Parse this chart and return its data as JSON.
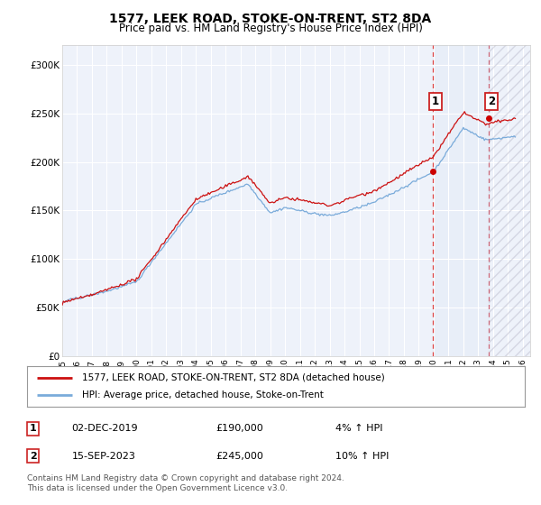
{
  "title": "1577, LEEK ROAD, STOKE-ON-TRENT, ST2 8DA",
  "subtitle": "Price paid vs. HM Land Registry's House Price Index (HPI)",
  "xlim_start": 1995.0,
  "xlim_end": 2026.5,
  "ylim": [
    0,
    320000
  ],
  "yticks": [
    0,
    50000,
    100000,
    150000,
    200000,
    250000,
    300000
  ],
  "ytick_labels": [
    "£0",
    "£50K",
    "£100K",
    "£150K",
    "£200K",
    "£250K",
    "£300K"
  ],
  "xticks": [
    1995,
    1996,
    1997,
    1998,
    1999,
    2000,
    2001,
    2002,
    2003,
    2004,
    2005,
    2006,
    2007,
    2008,
    2009,
    2010,
    2011,
    2012,
    2013,
    2014,
    2015,
    2016,
    2017,
    2018,
    2019,
    2020,
    2021,
    2022,
    2023,
    2024,
    2025,
    2026
  ],
  "background_color": "#ffffff",
  "plot_bg_color": "#eef2fa",
  "grid_color": "#ffffff",
  "sale1_x": 2019.92,
  "sale1_y": 190000,
  "sale2_x": 2023.71,
  "sale2_y": 245000,
  "vline1_color": "#dd4444",
  "vline2_color": "#cc6677",
  "span_color": "#dde8f5",
  "marker_color": "#cc0000",
  "hpi_line_color": "#7aabda",
  "price_line_color": "#cc1111",
  "legend_label1": "1577, LEEK ROAD, STOKE-ON-TRENT, ST2 8DA (detached house)",
  "legend_label2": "HPI: Average price, detached house, Stoke-on-Trent",
  "ann1_label": "1",
  "ann2_label": "2",
  "ann1_date": "02-DEC-2019",
  "ann1_price": "£190,000",
  "ann1_hpi": "4% ↑ HPI",
  "ann2_date": "15-SEP-2023",
  "ann2_price": "£245,000",
  "ann2_hpi": "10% ↑ HPI",
  "footer": "Contains HM Land Registry data © Crown copyright and database right 2024.\nThis data is licensed under the Open Government Licence v3.0."
}
